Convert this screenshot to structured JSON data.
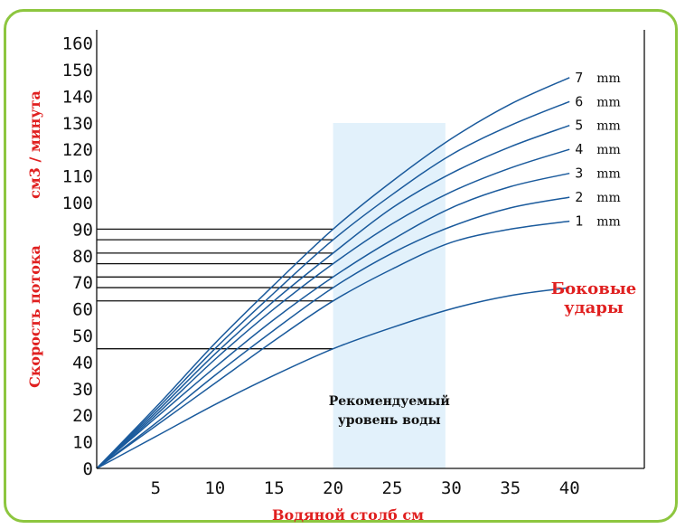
{
  "chart_data": {
    "type": "line",
    "xlabel": "Водяной столб см",
    "ylabel_top": "см3 / минута",
    "ylabel_bottom": "Скорость потока",
    "xlim": [
      0,
      45
    ],
    "ylim": [
      0,
      165
    ],
    "x_ticks": [
      "5",
      "10",
      "15",
      "20",
      "25",
      "30",
      "35",
      "40"
    ],
    "y_ticks": [
      "0",
      "10",
      "20",
      "30",
      "40",
      "50",
      "60",
      "70",
      "80",
      "90",
      "100",
      "110",
      "120",
      "130",
      "140",
      "150",
      "160"
    ],
    "band": {
      "x_range": [
        20,
        29.5
      ],
      "label_line1": "Рекомендуемый",
      "label_line2": "уровень воды"
    },
    "series": [
      {
        "name": "Боковые удары",
        "name_line1": "Боковые",
        "name_line2": "удары",
        "x": [
          0,
          5,
          10,
          15,
          20,
          25,
          30,
          35,
          40
        ],
        "values": [
          0,
          12,
          24,
          35,
          45,
          53,
          60,
          65,
          68
        ]
      },
      {
        "name": "1 mm",
        "num": "1",
        "unit": "mm",
        "x": [
          0,
          5,
          10,
          15,
          20,
          25,
          30,
          35,
          40
        ],
        "values": [
          0,
          16,
          32,
          48,
          63,
          75,
          85,
          90,
          93
        ]
      },
      {
        "name": "2 mm",
        "num": "2",
        "unit": "mm",
        "x": [
          0,
          5,
          10,
          15,
          20,
          25,
          30,
          35,
          40
        ],
        "values": [
          0,
          17,
          35,
          52,
          68,
          81,
          91,
          98,
          102
        ]
      },
      {
        "name": "3 mm",
        "num": "3",
        "unit": "mm",
        "x": [
          0,
          5,
          10,
          15,
          20,
          25,
          30,
          35,
          40
        ],
        "values": [
          0,
          19,
          38,
          56,
          72,
          86,
          98,
          106,
          111
        ]
      },
      {
        "name": "4 mm",
        "num": "4",
        "unit": "mm",
        "x": [
          0,
          5,
          10,
          15,
          20,
          25,
          30,
          35,
          40
        ],
        "values": [
          0,
          20,
          41,
          60,
          77,
          92,
          104,
          113,
          120
        ]
      },
      {
        "name": "5 mm",
        "num": "5",
        "unit": "mm",
        "x": [
          0,
          5,
          10,
          15,
          20,
          25,
          30,
          35,
          40
        ],
        "values": [
          0,
          21,
          43,
          63,
          81,
          98,
          111,
          121,
          129
        ]
      },
      {
        "name": "6 mm",
        "num": "6",
        "unit": "mm",
        "x": [
          0,
          5,
          10,
          15,
          20,
          25,
          30,
          35,
          40
        ],
        "values": [
          0,
          22,
          45,
          66,
          86,
          103,
          118,
          129,
          138
        ]
      },
      {
        "name": "7 mm",
        "num": "7",
        "unit": "mm",
        "x": [
          0,
          5,
          10,
          15,
          20,
          25,
          30,
          35,
          40
        ],
        "values": [
          0,
          23,
          47,
          69,
          90,
          108,
          124,
          137,
          147
        ]
      }
    ]
  }
}
